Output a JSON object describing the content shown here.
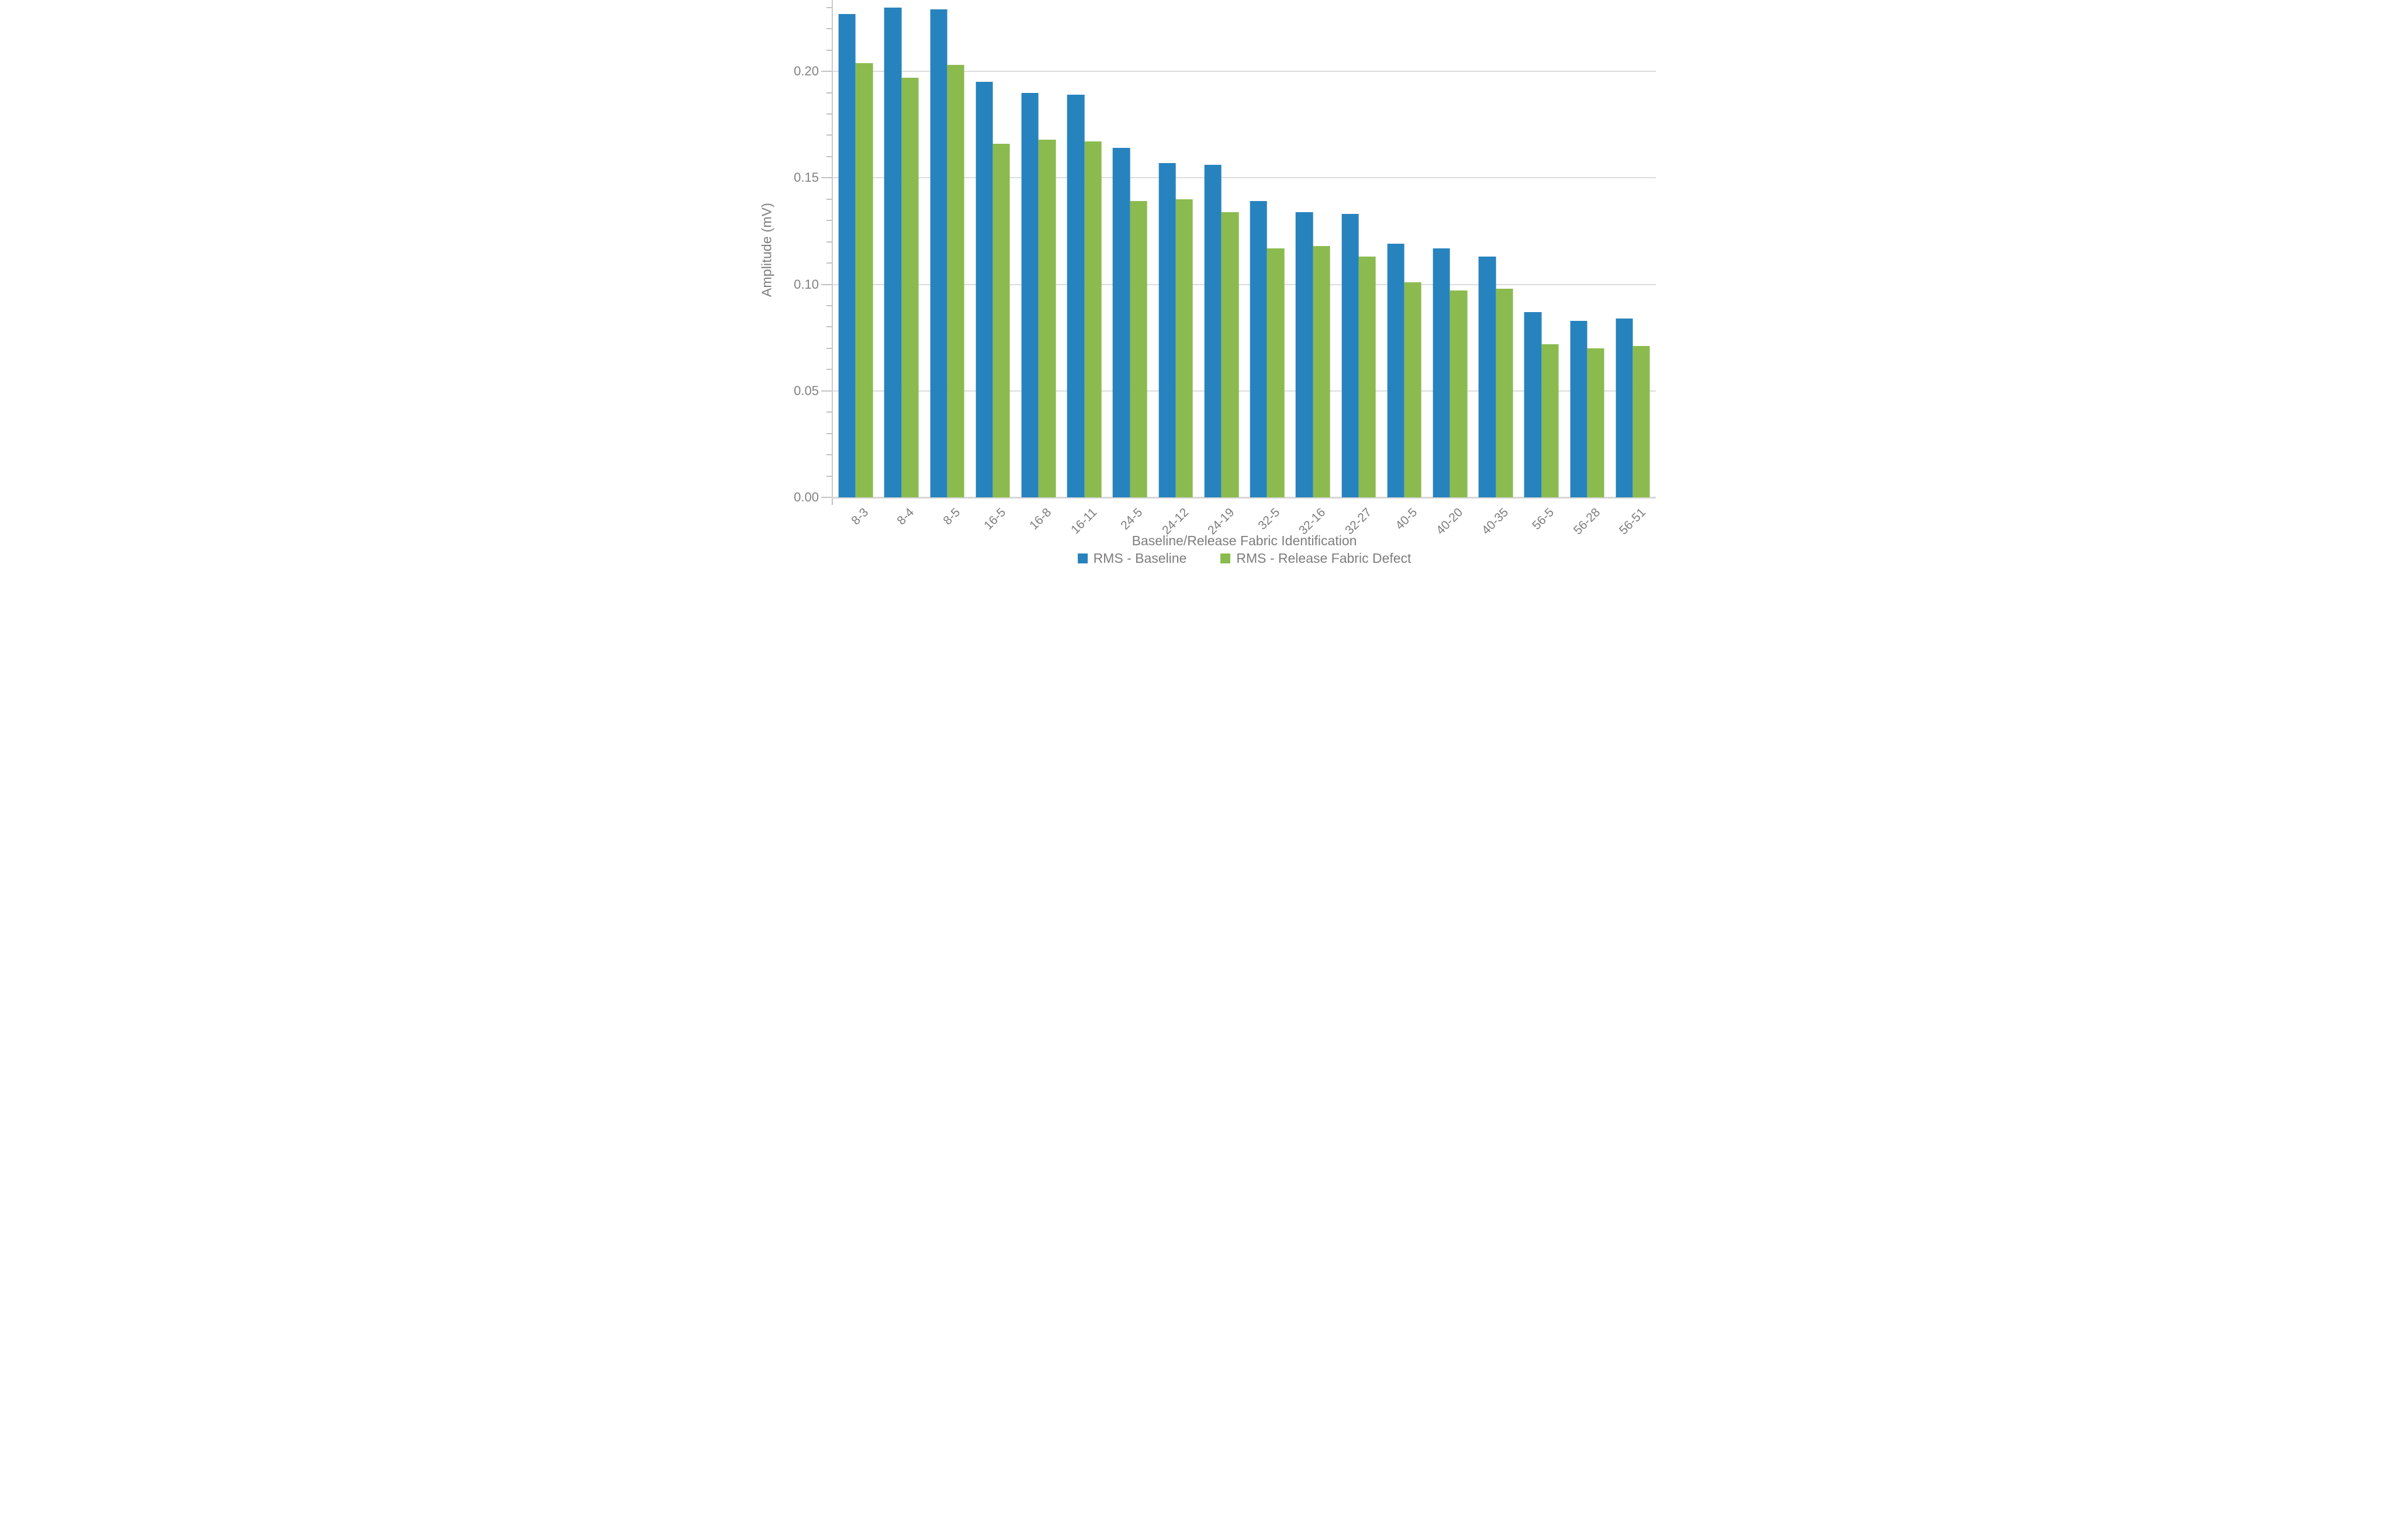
{
  "chart_data": {
    "type": "bar",
    "title": "",
    "xlabel": "Baseline/Release Fabric Identification",
    "ylabel": "Amplitude (mV)",
    "categories": [
      "8-3",
      "8-4",
      "8-5",
      "16-5",
      "16-8",
      "16-11",
      "24-5",
      "24-12",
      "24-19",
      "32-5",
      "32-16",
      "32-27",
      "40-5",
      "40-20",
      "40-35",
      "56-5",
      "56-28",
      "56-51"
    ],
    "series": [
      {
        "name": "RMS - Baseline",
        "color": "#2783BE",
        "values": [
          0.227,
          0.23,
          0.229,
          0.195,
          0.19,
          0.189,
          0.164,
          0.157,
          0.156,
          0.139,
          0.134,
          0.133,
          0.119,
          0.117,
          0.113,
          0.087,
          0.083,
          0.084
        ]
      },
      {
        "name": "RMS - Release Fabric Defect",
        "color": "#8BBB4E",
        "values": [
          0.204,
          0.197,
          0.203,
          0.166,
          0.168,
          0.167,
          0.139,
          0.14,
          0.134,
          0.117,
          0.118,
          0.113,
          0.101,
          0.097,
          0.098,
          0.072,
          0.07,
          0.071
        ]
      }
    ],
    "ylim": [
      0,
      0.2335
    ],
    "yticks": [
      0,
      0.05,
      0.1,
      0.15,
      0.2
    ],
    "ytick_labels": [
      "0.00",
      "0.05",
      "0.10",
      "0.15",
      "0.20"
    ],
    "minor_tick_step": 0.01,
    "grid": "major-horizontal",
    "legend_position": "bottom"
  }
}
